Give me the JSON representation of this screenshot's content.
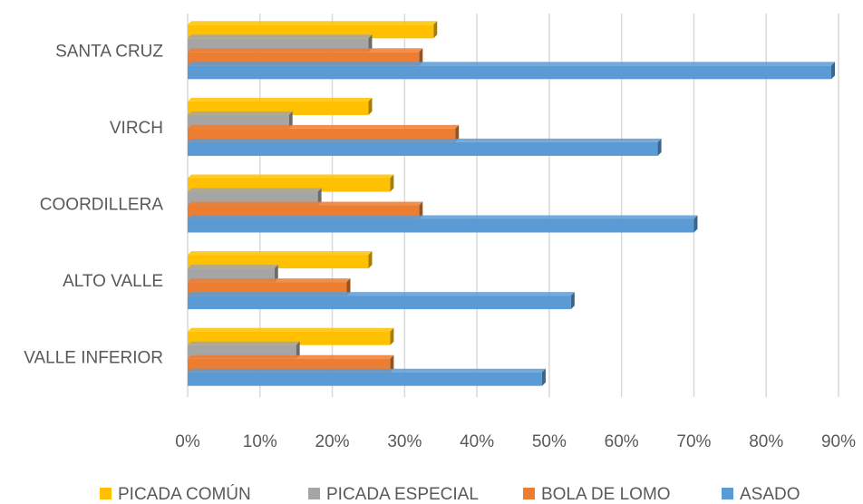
{
  "chart_data": {
    "type": "bar",
    "orientation": "horizontal",
    "categories": [
      "SANTA CRUZ",
      "VIRCH",
      "COORDILLERA",
      "ALTO VALLE",
      "VALLE INFERIOR"
    ],
    "series": [
      {
        "name": "PICADA COMÚN",
        "color": "#FFC000",
        "values": [
          34,
          25,
          28,
          25,
          28
        ]
      },
      {
        "name": "PICADA ESPECIAL",
        "color": "#A5A5A5",
        "values": [
          25,
          14,
          18,
          12,
          15
        ]
      },
      {
        "name": "BOLA DE LOMO",
        "color": "#ED7D31",
        "values": [
          32,
          37,
          32,
          22,
          28
        ]
      },
      {
        "name": "ASADO",
        "color": "#5B9BD5",
        "values": [
          89,
          65,
          70,
          53,
          49
        ]
      }
    ],
    "xlim": [
      0,
      90
    ],
    "xticks": [
      {
        "value": 0,
        "label": "0%"
      },
      {
        "value": 10,
        "label": "10%"
      },
      {
        "value": 20,
        "label": "20%"
      },
      {
        "value": 30,
        "label": "30%"
      },
      {
        "value": 40,
        "label": "40%"
      },
      {
        "value": 50,
        "label": "50%"
      },
      {
        "value": 60,
        "label": "60%"
      },
      {
        "value": 70,
        "label": "70%"
      },
      {
        "value": 80,
        "label": "80%"
      },
      {
        "value": 90,
        "label": "90%"
      }
    ],
    "grid": true,
    "legend": "bottom"
  }
}
